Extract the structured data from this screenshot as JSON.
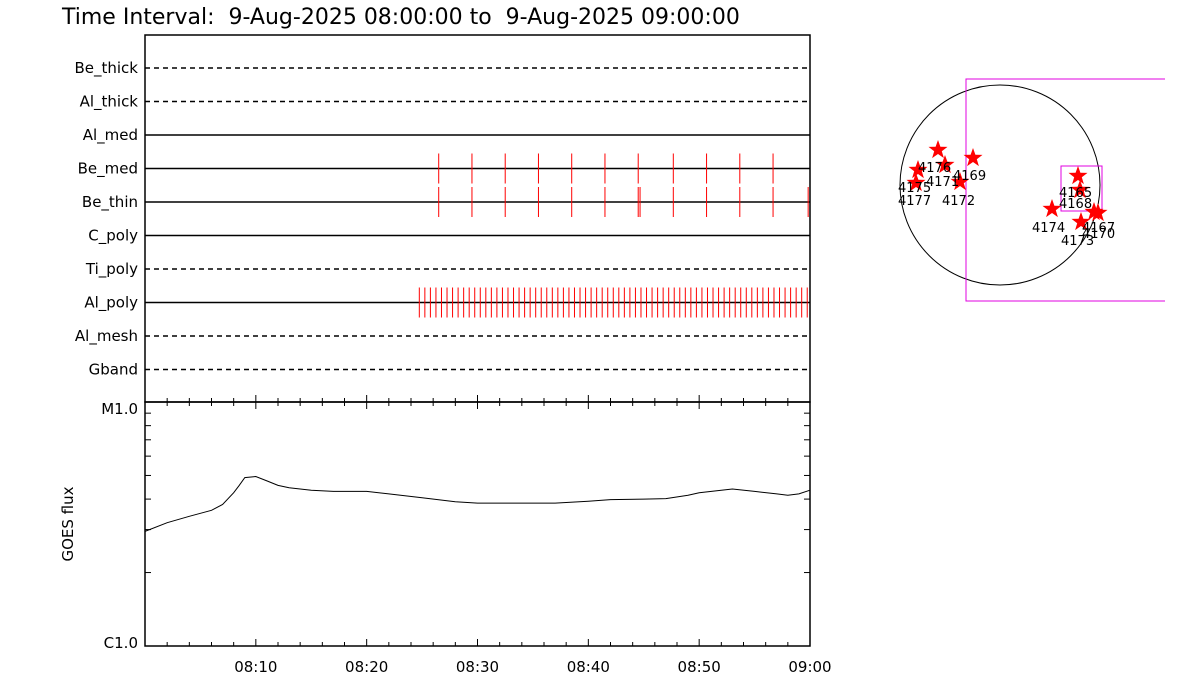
{
  "title": "Time Interval:  9-Aug-2025 08:00:00 to  9-Aug-2025 09:00:00",
  "colors": {
    "foreground": "#000000",
    "event_marks": "#ff0000",
    "fov_box": "#e000e0",
    "stars": "#ff0000"
  },
  "chart_data": [
    {
      "type": "line",
      "title": "",
      "filter_panel": {
        "filters": [
          {
            "name": "Be_thick",
            "style": "dashed",
            "events": []
          },
          {
            "name": "Al_thick",
            "style": "dashed",
            "events": []
          },
          {
            "name": "Al_med",
            "style": "solid",
            "events": []
          },
          {
            "name": "Be_med",
            "style": "solid",
            "events": [
              "08:26:30",
              "08:29:30",
              "08:32:30",
              "08:35:30",
              "08:38:30",
              "08:41:30",
              "08:44:30",
              "08:47:40",
              "08:50:40",
              "08:53:40",
              "08:56:40"
            ]
          },
          {
            "name": "Be_thin",
            "style": "solid",
            "events": [
              "08:26:30",
              "08:29:30",
              "08:32:30",
              "08:35:30",
              "08:38:30",
              "08:41:30",
              "08:44:30",
              "08:44:40",
              "08:47:40",
              "08:50:40",
              "08:53:40",
              "08:56:40",
              "08:59:50"
            ]
          },
          {
            "name": "C_poly",
            "style": "solid",
            "events": []
          },
          {
            "name": "Ti_poly",
            "style": "dashed",
            "events": []
          },
          {
            "name": "Al_poly",
            "style": "solid",
            "events_cadence": {
              "start": "08:24:45",
              "end": "09:00:00",
              "interval_s": 30
            }
          },
          {
            "name": "Al_mesh",
            "style": "dashed",
            "events": []
          },
          {
            "name": "Gband",
            "style": "dashed",
            "events": []
          }
        ]
      },
      "xlabel": "",
      "ylabel": "GOES flux",
      "x_ticks": [
        "08:10",
        "08:20",
        "08:30",
        "08:40",
        "08:50",
        "09:00"
      ],
      "y_ticks": [
        "M1.0",
        "C1.0"
      ],
      "y_scale": "log",
      "ylim": [
        1e-06,
        1e-05
      ],
      "xlim": [
        "08:00",
        "09:00"
      ],
      "series": [
        {
          "x": [
            "08:00",
            "08:02",
            "08:04",
            "08:06",
            "08:07",
            "08:08",
            "08:08:30",
            "08:09",
            "08:10",
            "08:11",
            "08:12",
            "08:13",
            "08:15",
            "08:17",
            "08:20",
            "08:22",
            "08:25",
            "08:28",
            "08:30",
            "08:33",
            "08:35",
            "08:37",
            "08:40",
            "08:42",
            "08:45",
            "08:47",
            "08:49",
            "08:50",
            "08:52",
            "08:53",
            "08:55",
            "08:57",
            "08:58",
            "08:59",
            "09:00"
          ],
          "y": [
            2.95e-06,
            3.2e-06,
            3.4e-06,
            3.6e-06,
            3.8e-06,
            4.25e-06,
            4.55e-06,
            4.9e-06,
            4.95e-06,
            4.75e-06,
            4.55e-06,
            4.45e-06,
            4.35e-06,
            4.3e-06,
            4.3e-06,
            4.2e-06,
            4.05e-06,
            3.9e-06,
            3.85e-06,
            3.85e-06,
            3.85e-06,
            3.85e-06,
            3.92e-06,
            3.98e-06,
            4e-06,
            4.02e-06,
            4.15e-06,
            4.25e-06,
            4.35e-06,
            4.4e-06,
            4.3e-06,
            4.2e-06,
            4.15e-06,
            4.2e-06,
            4.35e-06
          ]
        }
      ]
    }
  ],
  "solar_map": {
    "regions": [
      {
        "label": "4176"
      },
      {
        "label": "4175"
      },
      {
        "label": "4177"
      },
      {
        "label": "4171"
      },
      {
        "label": "4172"
      },
      {
        "label": "4169"
      },
      {
        "label": "4165"
      },
      {
        "label": "4168"
      },
      {
        "label": "4174"
      },
      {
        "label": "4173"
      },
      {
        "label": "4170"
      },
      {
        "label": "4167"
      }
    ]
  }
}
